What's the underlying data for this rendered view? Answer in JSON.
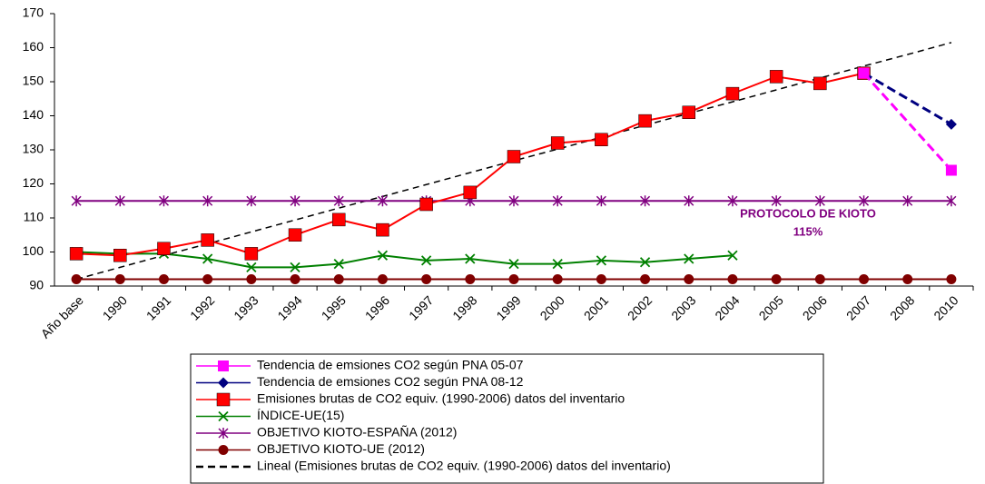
{
  "chart_data": {
    "type": "line",
    "categories": [
      "Año base",
      "1990",
      "1991",
      "1992",
      "1993",
      "1994",
      "1995",
      "1996",
      "1997",
      "1998",
      "1999",
      "2000",
      "2001",
      "2002",
      "2003",
      "2004",
      "2005",
      "2006",
      "2007",
      "2008",
      "2010"
    ],
    "ylim": [
      90,
      170
    ],
    "yticks": [
      90,
      100,
      110,
      120,
      130,
      140,
      150,
      160,
      170
    ],
    "annotations": [
      "PROTOCOLO DE KIOTO",
      "115%"
    ],
    "series": [
      {
        "name": "Tendencia de emsiones CO2 según PNA 05-07",
        "color": "#ff00ff",
        "marker": "square-small",
        "dashed": true,
        "values": [
          null,
          null,
          null,
          null,
          null,
          null,
          null,
          null,
          null,
          null,
          null,
          null,
          null,
          null,
          null,
          null,
          null,
          null,
          152.5,
          null,
          124
        ]
      },
      {
        "name": "Tendencia de emsiones CO2 según PNA 08-12",
        "color": "#000080",
        "marker": "diamond",
        "dashed": true,
        "values": [
          null,
          null,
          null,
          null,
          null,
          null,
          null,
          null,
          null,
          null,
          null,
          null,
          null,
          null,
          null,
          null,
          null,
          null,
          152.5,
          null,
          137.5
        ]
      },
      {
        "name": "Emisiones brutas de CO2 equiv. (1990-2006) datos del inventario",
        "color": "#ff0000",
        "marker": "square",
        "values": [
          99.5,
          99,
          101,
          103.5,
          99.5,
          105,
          109.5,
          106.5,
          114,
          117.5,
          128,
          132,
          133,
          138.5,
          141,
          146.5,
          151.5,
          149.5,
          152.5,
          null,
          null
        ]
      },
      {
        "name": "ÍNDICE-UE(15)",
        "color": "#008000",
        "marker": "x",
        "values": [
          100,
          99.5,
          99.5,
          98,
          95.5,
          95.5,
          96.5,
          99,
          97.5,
          98,
          96.5,
          96.5,
          97.5,
          97,
          98,
          99,
          null,
          null,
          null,
          null,
          null
        ]
      },
      {
        "name": "OBJETIVO KIOTO-ESPAÑA (2012)",
        "color": "#800080",
        "marker": "star",
        "values": [
          115,
          115,
          115,
          115,
          115,
          115,
          115,
          115,
          115,
          115,
          115,
          115,
          115,
          115,
          115,
          115,
          115,
          115,
          115,
          115,
          115
        ]
      },
      {
        "name": "OBJETIVO KIOTO-UE (2012)",
        "color": "#800000",
        "marker": "circle",
        "values": [
          92,
          92,
          92,
          92,
          92,
          92,
          92,
          92,
          92,
          92,
          92,
          92,
          92,
          92,
          92,
          92,
          92,
          92,
          92,
          92,
          92
        ]
      },
      {
        "name": "Lineal (Emisiones brutas de CO2 equiv. (1990-2006) datos del inventario)",
        "color": "#000000",
        "marker": "none",
        "dashed": true,
        "values": [
          92,
          95.5,
          99,
          102.4,
          105.9,
          109.4,
          112.9,
          116.3,
          119.8,
          123.3,
          126.8,
          130.2,
          133.7,
          137.2,
          140.7,
          144.1,
          147.6,
          151.1,
          154.6,
          158,
          161.5
        ]
      }
    ]
  }
}
